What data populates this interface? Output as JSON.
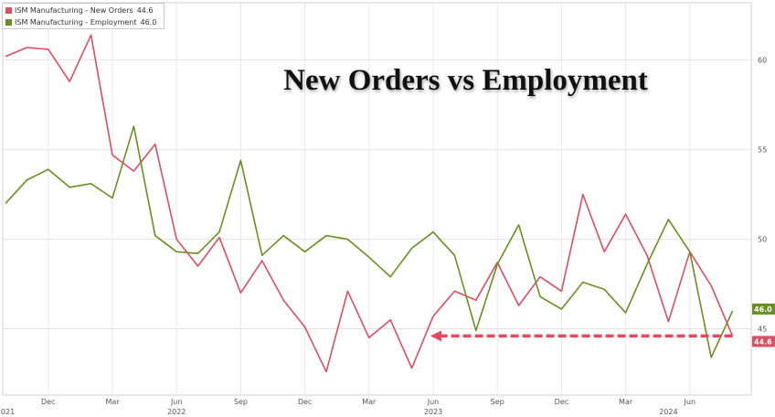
{
  "legend": {
    "entries": [
      {
        "name": "ISM Manufacturing - New Orders",
        "value": "44.6",
        "color": "#d94f63"
      },
      {
        "name": "ISM Manufacturing - Employment",
        "value": "46.0",
        "color": "#6b8e23"
      }
    ]
  },
  "chart_data": {
    "type": "line",
    "title": "New Orders vs Employment",
    "x": [
      "2021-10",
      "2021-11",
      "2021-12",
      "2022-01",
      "2022-02",
      "2022-03",
      "2022-04",
      "2022-05",
      "2022-06",
      "2022-07",
      "2022-08",
      "2022-09",
      "2022-10",
      "2022-11",
      "2022-12",
      "2023-01",
      "2023-02",
      "2023-03",
      "2023-04",
      "2023-05",
      "2023-06",
      "2023-07",
      "2023-08",
      "2023-09",
      "2023-10",
      "2023-11",
      "2023-12",
      "2024-01",
      "2024-02",
      "2024-03",
      "2024-04",
      "2024-05",
      "2024-06",
      "2024-07",
      "2024-08"
    ],
    "x_tick_labels": [
      {
        "x": "2021-12",
        "label": "Dec"
      },
      {
        "x": "2022-03",
        "label": "Mar"
      },
      {
        "x": "2022-06",
        "label": "Jun"
      },
      {
        "x": "2022-09",
        "label": "Sep"
      },
      {
        "x": "2022-12",
        "label": "Dec"
      },
      {
        "x": "2023-03",
        "label": "Mar"
      },
      {
        "x": "2023-06",
        "label": "Jun"
      },
      {
        "x": "2023-09",
        "label": "Sep"
      },
      {
        "x": "2023-12",
        "label": "Dec"
      },
      {
        "x": "2024-03",
        "label": "Mar"
      },
      {
        "x": "2024-06",
        "label": "Jun"
      }
    ],
    "year_labels": [
      {
        "x": "2021-10",
        "label": "2021"
      },
      {
        "x": "2022-06",
        "label": "2022"
      },
      {
        "x": "2023-06",
        "label": "2023"
      },
      {
        "x": "2024-05",
        "label": "2024"
      }
    ],
    "series": [
      {
        "name": "ISM Manufacturing - New Orders",
        "color": "#d94f63",
        "last_label": "44.6",
        "values": [
          60.2,
          60.7,
          60.6,
          58.8,
          61.4,
          54.7,
          53.8,
          55.3,
          50.0,
          48.5,
          50.1,
          47.0,
          48.8,
          46.6,
          45.1,
          42.6,
          47.1,
          44.5,
          45.5,
          42.8,
          45.7,
          47.1,
          46.6,
          48.7,
          46.3,
          47.9,
          47.1,
          52.5,
          49.3,
          51.4,
          49.1,
          45.4,
          49.3,
          47.4,
          44.6
        ]
      },
      {
        "name": "ISM Manufacturing - Employment",
        "color": "#6b8e23",
        "last_label": "46.0",
        "values": [
          52.0,
          53.3,
          53.9,
          52.9,
          53.1,
          52.3,
          56.3,
          50.2,
          49.3,
          49.2,
          50.4,
          54.4,
          49.1,
          50.2,
          49.3,
          50.2,
          50.0,
          49.0,
          47.9,
          49.5,
          50.4,
          49.1,
          44.9,
          48.6,
          50.8,
          46.8,
          46.1,
          47.6,
          47.2,
          45.9,
          48.6,
          51.1,
          49.3,
          43.4,
          46.0
        ]
      }
    ],
    "annotation": {
      "type": "dashed-arrow",
      "y": 44.6,
      "from_x": "2024-08",
      "to_x": "2023-06",
      "color": "#e24a5e"
    },
    "ylim": [
      41.3,
      63.2
    ],
    "yticks": [
      45,
      50,
      55,
      60
    ],
    "y_axis_position": "right",
    "grid": true,
    "legend_position": "top-left"
  }
}
